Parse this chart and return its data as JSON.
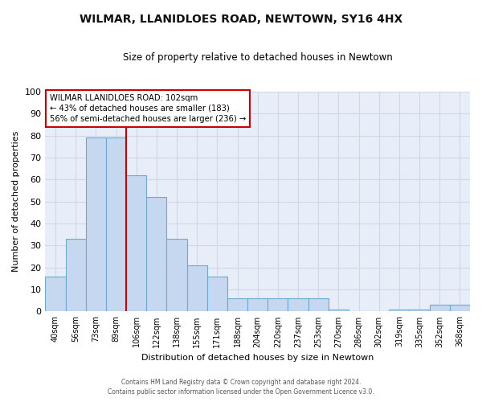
{
  "title": "WILMAR, LLANIDLOES ROAD, NEWTOWN, SY16 4HX",
  "subtitle": "Size of property relative to detached houses in Newtown",
  "xlabel": "Distribution of detached houses by size in Newtown",
  "ylabel": "Number of detached properties",
  "bar_labels": [
    "40sqm",
    "56sqm",
    "73sqm",
    "89sqm",
    "106sqm",
    "122sqm",
    "138sqm",
    "155sqm",
    "171sqm",
    "188sqm",
    "204sqm",
    "220sqm",
    "237sqm",
    "253sqm",
    "270sqm",
    "286sqm",
    "302sqm",
    "319sqm",
    "335sqm",
    "352sqm",
    "368sqm"
  ],
  "bar_values": [
    16,
    33,
    79,
    79,
    62,
    52,
    33,
    21,
    16,
    6,
    6,
    6,
    6,
    6,
    1,
    0,
    0,
    1,
    1,
    3,
    3
  ],
  "bar_color": "#c5d8ef",
  "bar_edge_color": "#6aabd2",
  "red_line_index": 4,
  "annotation_title": "WILMAR LLANIDLOES ROAD: 102sqm",
  "annotation_line1": "← 43% of detached houses are smaller (183)",
  "annotation_line2": "56% of semi-detached houses are larger (236) →",
  "annotation_box_color": "#ffffff",
  "annotation_border_color": "#cc0000",
  "red_line_color": "#cc0000",
  "ylim": [
    0,
    100
  ],
  "yticks": [
    0,
    10,
    20,
    30,
    40,
    50,
    60,
    70,
    80,
    90,
    100
  ],
  "grid_color": "#d0d8e8",
  "bg_color": "#ffffff",
  "plot_bg_color": "#e8eef8",
  "footer_line1": "Contains HM Land Registry data © Crown copyright and database right 2024.",
  "footer_line2": "Contains public sector information licensed under the Open Government Licence v3.0."
}
